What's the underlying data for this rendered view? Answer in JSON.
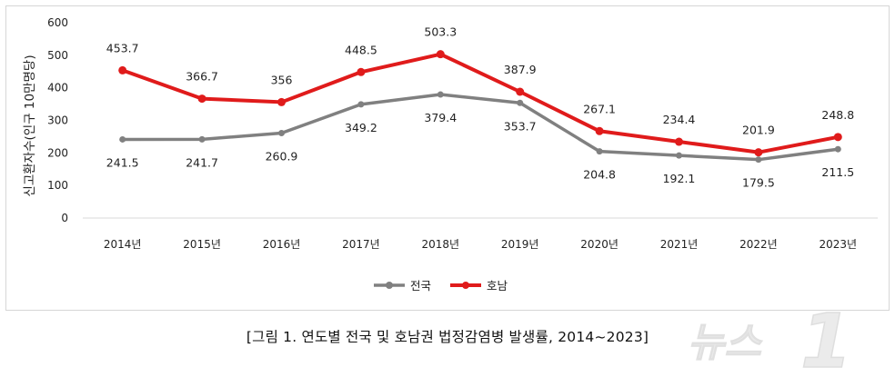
{
  "caption": "[그림 1. 연도별 전국 및 호남권 법정감염병 발생률, 2014~2023]",
  "watermark": "뉴스1",
  "chart_data": {
    "type": "line",
    "title": "",
    "xlabel": "",
    "ylabel": "신고환자수(인구 10만명당)",
    "ylim": [
      0,
      600
    ],
    "yticks": [
      0,
      100,
      200,
      300,
      400,
      500,
      600
    ],
    "grid": false,
    "legend_position": "bottom",
    "categories": [
      "2014년",
      "2015년",
      "2016년",
      "2017년",
      "2018년",
      "2019년",
      "2020년",
      "2021년",
      "2022년",
      "2023년"
    ],
    "series": [
      {
        "name": "전국",
        "color": "#808080",
        "values": [
          241.5,
          241.7,
          260.9,
          349.2,
          379.4,
          353.7,
          204.8,
          192.1,
          179.5,
          211.5
        ],
        "labels": [
          "241.5",
          "241.7",
          "260.9",
          "349.2",
          "379.4",
          "353.7",
          "204.8",
          "192.1",
          "179.5",
          "211.5"
        ]
      },
      {
        "name": "호남",
        "color": "#e01b1b",
        "values": [
          453.7,
          366.7,
          356,
          448.5,
          503.3,
          387.9,
          267.1,
          234.4,
          201.9,
          248.8
        ],
        "labels": [
          "453.7",
          "366.7",
          "356",
          "448.5",
          "503.3",
          "387.9",
          "267.1",
          "234.4",
          "201.9",
          "248.8"
        ]
      }
    ]
  }
}
